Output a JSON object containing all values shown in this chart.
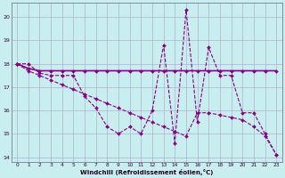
{
  "xlabel": "Windchill (Refroidissement éolien,°C)",
  "bg_color": "#c8eef0",
  "grid_color": "#b0b0cc",
  "line_color": "#880088",
  "ylim": [
    13.8,
    20.6
  ],
  "xlim": [
    -0.5,
    23.5
  ],
  "yticks": [
    14,
    15,
    16,
    17,
    18,
    19,
    20
  ],
  "xticks": [
    0,
    1,
    2,
    3,
    4,
    5,
    6,
    7,
    8,
    9,
    10,
    11,
    12,
    13,
    14,
    15,
    16,
    17,
    18,
    19,
    20,
    21,
    22,
    23
  ],
  "hours": [
    0,
    1,
    2,
    3,
    4,
    5,
    6,
    7,
    8,
    9,
    10,
    11,
    12,
    13,
    14,
    15,
    16,
    17,
    18,
    19,
    20,
    21,
    22,
    23
  ],
  "series1": [
    18.0,
    18.0,
    17.6,
    17.5,
    17.5,
    17.5,
    16.6,
    16.1,
    15.3,
    15.0,
    15.3,
    15.0,
    16.0,
    18.8,
    14.6,
    20.3,
    15.5,
    18.7,
    17.5,
    17.5,
    15.9,
    15.9,
    15.0,
    14.1
  ],
  "series2": [
    18.0,
    17.8,
    17.7,
    17.7,
    17.7,
    17.7,
    17.7,
    17.7,
    17.7,
    17.7,
    17.7,
    17.7,
    17.7,
    17.7,
    17.7,
    17.7,
    17.7,
    17.7,
    17.7,
    17.7,
    17.7,
    17.7,
    17.7,
    17.7
  ],
  "series3": [
    18.0,
    17.7,
    17.5,
    17.3,
    17.1,
    16.9,
    16.7,
    16.5,
    16.3,
    16.1,
    15.9,
    15.7,
    15.5,
    15.3,
    15.1,
    14.9,
    15.9,
    15.9,
    15.8,
    15.7,
    15.6,
    15.3,
    14.9,
    14.1
  ]
}
